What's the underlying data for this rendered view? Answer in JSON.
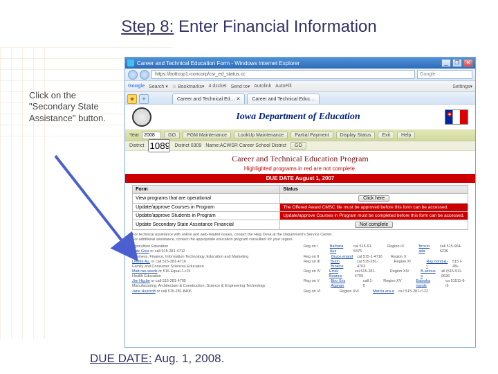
{
  "slide": {
    "title_prefix": "Step 8:",
    "title_rest": " Enter Financial Information",
    "callout": "Click on the \"Secondary State Assistance\" button.",
    "due_prefix": "DUE DATE:",
    "due_rest": " Aug. 1, 2008."
  },
  "arrow": {
    "color": "#4a5fd0",
    "length": 140,
    "head": 22
  },
  "browser": {
    "window_title": "Career and Technical Education Form - Windows Internet Explorer",
    "url": "https://bottcop1.iconcorp/csr_ed_status.cc",
    "search_placeholder": "Google",
    "win_min": "_",
    "win_max": "❐",
    "win_close": "✕",
    "google_bar": {
      "logo": "Google",
      "items": [
        "Search ▾",
        "☆ Bookmarks▾",
        "4 dzcket",
        "Send to▾",
        "Autolink",
        "AutoFill",
        "Settings▾"
      ]
    },
    "fav": "★",
    "tabs": [
      "Career and Technical Ed… ✕",
      "Career and Technical Educ…"
    ]
  },
  "dept": {
    "title": "Iowa Department of Education"
  },
  "navrow": {
    "year_label": "Year",
    "year_value": "2008",
    "go": "GO",
    "buttons": [
      "PGM Maintenance",
      "LookUp Maintenance",
      "Partial Payment",
      "Display Status"
    ],
    "exit": "Exit",
    "help": "Help"
  },
  "navrow2": {
    "district_label": "District",
    "district_value": "1089",
    "id_label": "District 0309",
    "name_label": "Name:ACWSR Career School District",
    "go": "GO"
  },
  "program": {
    "title": "Career and Technical Education Program",
    "highlight": "Highlighted programs in red are not complete.",
    "due": "DUE DATE August 1, 2007"
  },
  "table": {
    "col1": "Form",
    "col2": "Status",
    "rows": [
      {
        "form": "View programs that are operational",
        "status_btn": "Click here",
        "red": false
      },
      {
        "form": "Update/approve Courses in Program",
        "status": "The Offered Award CMSC file must be approved before this form can be accessed.",
        "red": true
      },
      {
        "form": "Update/approve Students in Program",
        "status": "Update/approve Courses in Program must be completed before this form can be accessed.",
        "red": true
      },
      {
        "form": "Update Secondary State Assistance Financial",
        "status_btn": "Not complete",
        "red": false
      }
    ]
  },
  "footer": {
    "intro1": "For technical assistance with online and web-related issues, contact the Help Desk at the Department's Service Center.",
    "intro2": "For additional assistance, contact the appropriate education program consultant for your region.",
    "left": [
      {
        "area": "Agriculture Education",
        "name": "Dale Gros",
        "phone": "call 515-281-4712"
      },
      {
        "area": "Business, Finance, Information Technology, Education and Marketing",
        "name": "Linette Au.",
        "phone": "call 515-281-4716"
      },
      {
        "area": "Family and Consumer Sciences Education",
        "name": "Matt ran-seeds",
        "phone": "515-Equal-1-r15"
      },
      {
        "area": "Health Education",
        "name": "Jim Hig.be",
        "phone": "call 515-281-4705"
      },
      {
        "area": "Manufacturing, Architecture & Construction, Science & Engineering Technology",
        "name": "Jane Huscroft",
        "phone": "call 515-281-8406"
      }
    ],
    "right": [
      {
        "reg": "Reg on I",
        "name": "Barbara Aus",
        "phone": "cal 515-91-5476",
        "reg2": "Region IX",
        "name2": "Brocio ada",
        "phone2": "call 515-964-6236"
      },
      {
        "reg": "Reg on II",
        "name": "Bruce enand",
        "phone": "cal 515-1-4716",
        "reg2": "Region X",
        "name2": "",
        "phone2": ""
      },
      {
        "reg": "Reg on III",
        "name": "Buon Brokins",
        "phone": "cal 515-281-4703",
        "reg2": "Region XI",
        "name2": "Ray nond-&-t",
        "phone2": "515 l-4%-"
      },
      {
        "reg": "Reg on IV",
        "name": "Errek Beanne",
        "phone": "cal 515-281-4709",
        "reg2": "Region XIV",
        "name2": "B-azious o",
        "phone2": "all (515-911-9636"
      },
      {
        "reg": "Reg on V",
        "name": "Biro Xris Aqanan",
        "phone": "call 1-5",
        "reg2": "Region XV",
        "name2": "Batouha nande",
        "phone2": "ca 51511-6-i5"
      },
      {
        "reg": "Reg on VI",
        "name": "",
        "phone": "",
        "reg2": "Region XVI",
        "name2": "Marcia ara-a",
        "phone2": "ca l 515-281-r122"
      }
    ]
  }
}
